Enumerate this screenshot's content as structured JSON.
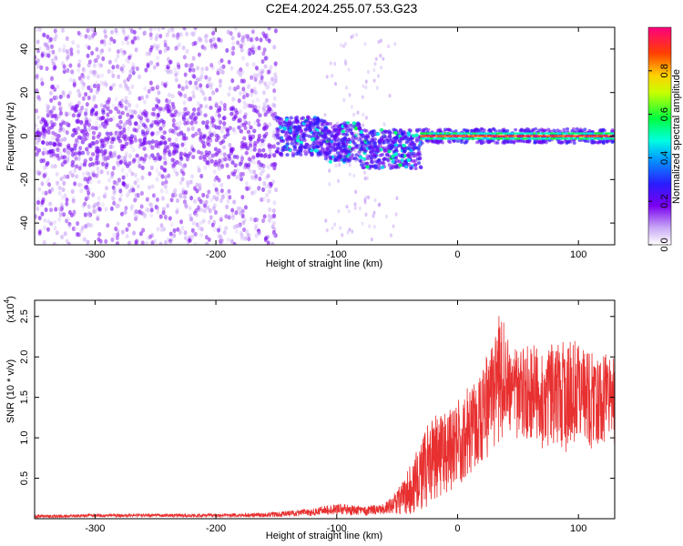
{
  "title": "C2E4.2024.255.07.53.G23",
  "chart_data": [
    {
      "type": "heatmap",
      "xlabel": "Height of straight line (km)",
      "ylabel": "Frequency (Hz)",
      "xlim": [
        -350,
        130
      ],
      "ylim": [
        -50,
        50
      ],
      "x_ticks": [
        -300,
        -200,
        -100,
        0,
        100
      ],
      "y_ticks": [
        -40,
        -20,
        0,
        20,
        40
      ],
      "colorbar": {
        "label": "Normalized spectral amplitude",
        "range": [
          0.0,
          1.0
        ],
        "ticks": [
          "0.0",
          "0.2",
          "0.4",
          "0.6",
          "0.8"
        ],
        "colormap": "rainbow (white-violet-blue-cyan-green-yellow-orange-red-pink)"
      },
      "features": [
        {
          "x_range": [
            -350,
            -150
          ],
          "freq_range": [
            -50,
            50
          ],
          "amplitude": 0.05,
          "note": "scattered low-amplitude purple speckle"
        },
        {
          "x_range": [
            -150,
            -30
          ],
          "freq_center": 0,
          "amplitude": 0.25,
          "note": "band with blue/cyan/green patches, dipping to about -10 Hz near -60 km"
        },
        {
          "x_range": [
            -30,
            130
          ],
          "freq_center": 0,
          "freq_width": 3,
          "amplitude": 0.95,
          "note": "narrow red line at 0 Hz"
        }
      ]
    },
    {
      "type": "line",
      "xlabel": "Height of straight line (km)",
      "ylabel": "SNR (10 * v/v)",
      "y_multiplier": "(x10",
      "y_multiplier_exp": "4",
      "xlim": [
        -350,
        130
      ],
      "ylim": [
        0,
        2.7
      ],
      "x_ticks": [
        -300,
        -200,
        -100,
        0,
        100
      ],
      "y_ticks": [
        "0.5",
        "1.0",
        "1.5",
        "2.0",
        "2.5"
      ],
      "series": [
        {
          "color": "#e83030",
          "x": [
            -350,
            -300,
            -250,
            -200,
            -150,
            -120,
            -100,
            -80,
            -60,
            -50,
            -40,
            -30,
            -20,
            -10,
            0,
            10,
            20,
            30,
            35,
            40,
            50,
            60,
            70,
            80,
            90,
            100,
            110,
            120,
            130
          ],
          "y": [
            0.03,
            0.04,
            0.04,
            0.04,
            0.05,
            0.08,
            0.12,
            0.1,
            0.12,
            0.2,
            0.35,
            0.55,
            0.75,
            0.8,
            0.95,
            1.1,
            1.3,
            1.5,
            1.8,
            1.65,
            1.5,
            1.6,
            1.45,
            1.55,
            1.5,
            1.6,
            1.45,
            1.5,
            1.45
          ],
          "spread": [
            0.02,
            0.02,
            0.02,
            0.02,
            0.03,
            0.05,
            0.07,
            0.06,
            0.07,
            0.15,
            0.3,
            0.45,
            0.55,
            0.5,
            0.55,
            0.55,
            0.6,
            0.7,
            0.85,
            0.65,
            0.55,
            0.6,
            0.6,
            0.65,
            0.7,
            0.6,
            0.6,
            0.55,
            0.55
          ]
        }
      ]
    }
  ]
}
